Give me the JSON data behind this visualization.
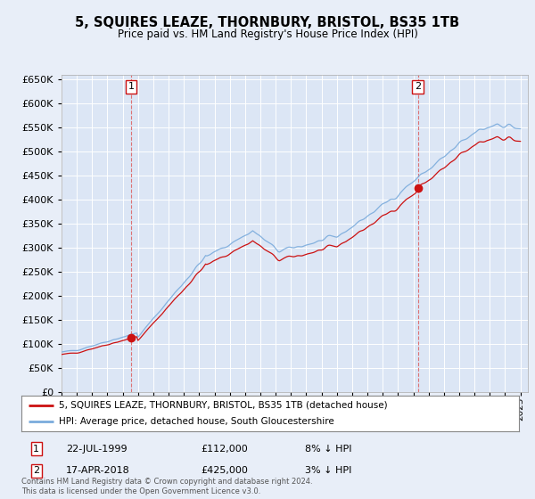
{
  "title": "5, SQUIRES LEAZE, THORNBURY, BRISTOL, BS35 1TB",
  "subtitle": "Price paid vs. HM Land Registry's House Price Index (HPI)",
  "hpi_label": "HPI: Average price, detached house, South Gloucestershire",
  "price_label": "5, SQUIRES LEAZE, THORNBURY, BRISTOL, BS35 1TB (detached house)",
  "sale1_date": "22-JUL-1999",
  "sale1_price": 112000,
  "sale1_note": "8% ↓ HPI",
  "sale2_date": "17-APR-2018",
  "sale2_price": 425000,
  "sale2_note": "3% ↓ HPI",
  "sale1_x": 1999.55,
  "sale2_x": 2018.29,
  "footer": "Contains HM Land Registry data © Crown copyright and database right 2024.\nThis data is licensed under the Open Government Licence v3.0.",
  "background_color": "#e8eef8",
  "plot_bg_color": "#dce6f5",
  "hpi_color": "#7aabdc",
  "price_color": "#cc1111",
  "vline_color": "#dd6666",
  "ylim": [
    0,
    660000
  ],
  "yticks": [
    0,
    50000,
    100000,
    150000,
    200000,
    250000,
    300000,
    350000,
    400000,
    450000,
    500000,
    550000,
    600000,
    650000
  ]
}
